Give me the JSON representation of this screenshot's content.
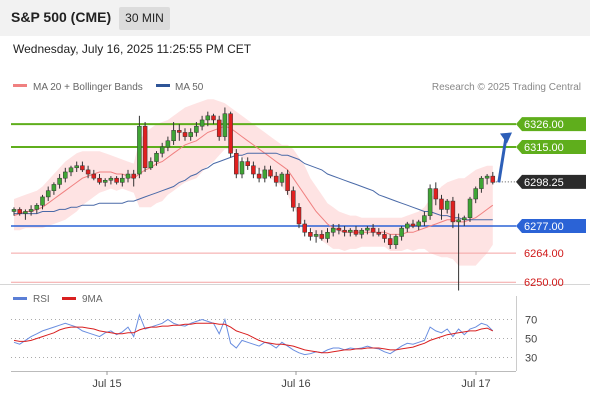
{
  "header": {
    "title": "S&P 500 (CME)",
    "timeframe": "30 MIN"
  },
  "datetime": "Wednesday, July 16, 2025 11:25:55 PM CET",
  "legend": [
    {
      "label": "MA 20 + Bollinger Bands",
      "color": "#f08080"
    },
    {
      "label": "MA 50",
      "color": "#2f5597"
    }
  ],
  "rsi_legend": [
    {
      "label": "RSI",
      "color": "#5b7fd6"
    },
    {
      "label": "9MA",
      "color": "#d92020"
    }
  ],
  "source": "Research © 2025 Trading Central",
  "chart_data": {
    "type": "candlestick",
    "y_range": [
      6240,
      6340
    ],
    "x_labels": [
      "Jul 15",
      "Jul 16",
      "Jul 17"
    ],
    "current_price": 6298.25,
    "current_label": "6298.25",
    "levels": [
      {
        "label": "6326.00",
        "value": 6326,
        "kind": "resistance"
      },
      {
        "label": "6315.00",
        "value": 6315,
        "kind": "resistance"
      },
      {
        "label": "6277.00",
        "value": 6277,
        "kind": "pivot"
      },
      {
        "label": "6264.00",
        "value": 6264,
        "kind": "support"
      },
      {
        "label": "6250.00",
        "value": 6250,
        "kind": "support"
      }
    ],
    "forecast_arrow": {
      "from": 6298,
      "to": 6322
    },
    "candles": [
      [
        6284,
        6286,
        6282,
        6285
      ],
      [
        6285,
        6286,
        6282,
        6283
      ],
      [
        6283,
        6285,
        6280,
        6284
      ],
      [
        6284,
        6287,
        6282,
        6285
      ],
      [
        6285,
        6288,
        6283,
        6287
      ],
      [
        6287,
        6292,
        6285,
        6291
      ],
      [
        6291,
        6296,
        6289,
        6294
      ],
      [
        6294,
        6298,
        6292,
        6297
      ],
      [
        6297,
        6302,
        6295,
        6300
      ],
      [
        6300,
        6305,
        6298,
        6303
      ],
      [
        6303,
        6306,
        6301,
        6305
      ],
      [
        6305,
        6308,
        6303,
        6306
      ],
      [
        6306,
        6308,
        6303,
        6304
      ],
      [
        6304,
        6306,
        6300,
        6302
      ],
      [
        6302,
        6304,
        6299,
        6300
      ],
      [
        6300,
        6302,
        6297,
        6298
      ],
      [
        6298,
        6300,
        6296,
        6299
      ],
      [
        6299,
        6301,
        6297,
        6300
      ],
      [
        6300,
        6301,
        6297,
        6298
      ],
      [
        6298,
        6302,
        6296,
        6300
      ],
      [
        6300,
        6304,
        6298,
        6302
      ],
      [
        6302,
        6304,
        6296,
        6300
      ],
      [
        6302,
        6330,
        6300,
        6325
      ],
      [
        6325,
        6327,
        6303,
        6305
      ],
      [
        6305,
        6310,
        6304,
        6308
      ],
      [
        6308,
        6313,
        6306,
        6312
      ],
      [
        6312,
        6317,
        6310,
        6315
      ],
      [
        6315,
        6320,
        6313,
        6318
      ],
      [
        6318,
        6327,
        6316,
        6323
      ],
      [
        6323,
        6326,
        6318,
        6322
      ],
      [
        6322,
        6324,
        6318,
        6320
      ],
      [
        6320,
        6324,
        6318,
        6322
      ],
      [
        6322,
        6327,
        6320,
        6325
      ],
      [
        6325,
        6330,
        6323,
        6328
      ],
      [
        6328,
        6332,
        6325,
        6330
      ],
      [
        6330,
        6331,
        6326,
        6328
      ],
      [
        6328,
        6330,
        6318,
        6320
      ],
      [
        6320,
        6334,
        6318,
        6331
      ],
      [
        6331,
        6332,
        6310,
        6312
      ],
      [
        6312,
        6314,
        6300,
        6302
      ],
      [
        6302,
        6310,
        6300,
        6308
      ],
      [
        6308,
        6310,
        6304,
        6306
      ],
      [
        6306,
        6308,
        6300,
        6302
      ],
      [
        6302,
        6305,
        6298,
        6300
      ],
      [
        6300,
        6306,
        6298,
        6304
      ],
      [
        6304,
        6306,
        6300,
        6301
      ],
      [
        6301,
        6303,
        6296,
        6298
      ],
      [
        6298,
        6303,
        6296,
        6302
      ],
      [
        6302,
        6304,
        6292,
        6294
      ],
      [
        6294,
        6296,
        6284,
        6286
      ],
      [
        6286,
        6288,
        6276,
        6278
      ],
      [
        6278,
        6280,
        6272,
        6274
      ],
      [
        6274,
        6276,
        6270,
        6272
      ],
      [
        6272,
        6275,
        6269,
        6273
      ],
      [
        6273,
        6275,
        6270,
        6271
      ],
      [
        6271,
        6276,
        6269,
        6274
      ],
      [
        6274,
        6278,
        6272,
        6276
      ],
      [
        6276,
        6278,
        6273,
        6275
      ],
      [
        6275,
        6277,
        6272,
        6274
      ],
      [
        6274,
        6276,
        6272,
        6275
      ],
      [
        6275,
        6277,
        6272,
        6273
      ],
      [
        6273,
        6276,
        6271,
        6275
      ],
      [
        6275,
        6277,
        6273,
        6276
      ],
      [
        6276,
        6278,
        6272,
        6274
      ],
      [
        6274,
        6276,
        6272,
        6273
      ],
      [
        6273,
        6275,
        6269,
        6271
      ],
      [
        6271,
        6273,
        6266,
        6268
      ],
      [
        6268,
        6273,
        6266,
        6272
      ],
      [
        6272,
        6277,
        6270,
        6276
      ],
      [
        6276,
        6279,
        6274,
        6278
      ],
      [
        6278,
        6280,
        6276,
        6277
      ],
      [
        6277,
        6280,
        6275,
        6279
      ],
      [
        6279,
        6284,
        6277,
        6282
      ],
      [
        6282,
        6297,
        6280,
        6295
      ],
      [
        6295,
        6298,
        6287,
        6290
      ],
      [
        6290,
        6292,
        6280,
        6285
      ],
      [
        6285,
        6290,
        6283,
        6289
      ],
      [
        6289,
        6291,
        6276,
        6279
      ],
      [
        6279,
        6283,
        6246,
        6280
      ],
      [
        6280,
        6282,
        6277,
        6281
      ],
      [
        6281,
        6291,
        6279,
        6290
      ],
      [
        6290,
        6296,
        6288,
        6295
      ],
      [
        6295,
        6301,
        6293,
        6300
      ],
      [
        6300,
        6302,
        6297,
        6301
      ],
      [
        6301,
        6303,
        6297,
        6298
      ]
    ],
    "ma20": [
      6282,
      6283,
      6284,
      6284,
      6285,
      6286,
      6288,
      6290,
      6292,
      6294,
      6296,
      6298,
      6300,
      6301,
      6302,
      6303,
      6303,
      6303,
      6302,
      6302,
      6301,
      6300,
      6302,
      6304,
      6305,
      6307,
      6308,
      6310,
      6312,
      6314,
      6316,
      6317,
      6318,
      6320,
      6322,
      6323,
      6324,
      6325,
      6324,
      6322,
      6320,
      6318,
      6316,
      6314,
      6312,
      6310,
      6308,
      6306,
      6304,
      6300,
      6296,
      6292,
      6288,
      6284,
      6281,
      6278,
      6276,
      6275,
      6274,
      6274,
      6274,
      6274,
      6274,
      6274,
      6274,
      6274,
      6273,
      6273,
      6273,
      6274,
      6274,
      6275,
      6276,
      6277,
      6278,
      6279,
      6280,
      6280,
      6279,
      6279,
      6280,
      6281,
      6283,
      6285,
      6287
    ],
    "bb_upper": [
      6290,
      6291,
      6292,
      6293,
      6294,
      6296,
      6299,
      6302,
      6305,
      6308,
      6310,
      6312,
      6313,
      6313,
      6313,
      6313,
      6312,
      6311,
      6310,
      6309,
      6308,
      6307,
      6318,
      6322,
      6324,
      6326,
      6327,
      6328,
      6330,
      6332,
      6334,
      6335,
      6336,
      6337,
      6338,
      6338,
      6337,
      6336,
      6334,
      6332,
      6330,
      6328,
      6326,
      6324,
      6322,
      6320,
      6318,
      6316,
      6316,
      6314,
      6310,
      6306,
      6300,
      6296,
      6292,
      6288,
      6286,
      6284,
      6283,
      6282,
      6282,
      6281,
      6281,
      6281,
      6281,
      6281,
      6281,
      6281,
      6281,
      6282,
      6283,
      6284,
      6286,
      6290,
      6293,
      6296,
      6298,
      6299,
      6300,
      6300,
      6302,
      6304,
      6305,
      6306,
      6306
    ],
    "bb_lower": [
      6275,
      6275,
      6276,
      6276,
      6276,
      6276,
      6277,
      6278,
      6279,
      6280,
      6282,
      6284,
      6287,
      6289,
      6291,
      6293,
      6294,
      6295,
      6294,
      6295,
      6294,
      6293,
      6286,
      6286,
      6286,
      6288,
      6289,
      6292,
      6294,
      6296,
      6298,
      6299,
      6300,
      6303,
      6306,
      6308,
      6311,
      6314,
      6314,
      6312,
      6310,
      6308,
      6306,
      6304,
      6302,
      6300,
      6298,
      6296,
      6292,
      6286,
      6282,
      6278,
      6276,
      6272,
      6270,
      6268,
      6266,
      6266,
      6265,
      6266,
      6266,
      6267,
      6267,
      6267,
      6267,
      6267,
      6265,
      6265,
      6265,
      6266,
      6265,
      6266,
      6266,
      6264,
      6263,
      6262,
      6262,
      6261,
      6258,
      6258,
      6258,
      6258,
      6261,
      6264,
      6268
    ],
    "ma50": [
      6283,
      6283,
      6283,
      6283,
      6283,
      6284,
      6284,
      6284,
      6285,
      6285,
      6286,
      6286,
      6287,
      6287,
      6287,
      6288,
      6288,
      6288,
      6288,
      6288,
      6289,
      6289,
      6290,
      6291,
      6292,
      6293,
      6294,
      6295,
      6296,
      6298,
      6299,
      6301,
      6302,
      6304,
      6305,
      6307,
      6308,
      6309,
      6310,
      6311,
      6311,
      6312,
      6312,
      6312,
      6312,
      6312,
      6312,
      6311,
      6311,
      6310,
      6309,
      6307,
      6306,
      6305,
      6304,
      6302,
      6301,
      6300,
      6299,
      6298,
      6297,
      6296,
      6295,
      6294,
      6292,
      6291,
      6290,
      6289,
      6288,
      6287,
      6286,
      6285,
      6284,
      6284,
      6283,
      6282,
      6282,
      6281,
      6281,
      6280,
      6280,
      6280,
      6280,
      6280,
      6280
    ],
    "rsi": {
      "ticks": [
        70,
        50,
        30
      ],
      "range": [
        20,
        80
      ],
      "rsi": [
        46,
        44,
        48,
        52,
        55,
        58,
        60,
        62,
        64,
        66,
        64,
        62,
        58,
        56,
        54,
        52,
        56,
        58,
        54,
        57,
        62,
        52,
        75,
        60,
        62,
        64,
        66,
        70,
        66,
        64,
        63,
        66,
        68,
        70,
        68,
        66,
        55,
        70,
        45,
        40,
        48,
        46,
        44,
        42,
        46,
        44,
        40,
        46,
        42,
        38,
        35,
        33,
        34,
        36,
        35,
        38,
        40,
        40,
        38,
        40,
        39,
        40,
        42,
        40,
        39,
        36,
        34,
        38,
        42,
        45,
        44,
        46,
        48,
        62,
        58,
        56,
        60,
        52,
        60,
        54,
        60,
        62,
        66,
        64,
        58
      ],
      "ma9": [
        48,
        47,
        47,
        48,
        50,
        52,
        54,
        56,
        59,
        61,
        62,
        62,
        62,
        61,
        60,
        58,
        57,
        56,
        55,
        55,
        56,
        56,
        59,
        61,
        62,
        62,
        63,
        63,
        64,
        64,
        65,
        65,
        66,
        66,
        66,
        66,
        65,
        65,
        62,
        58,
        56,
        54,
        51,
        48,
        46,
        45,
        44,
        44,
        43,
        42,
        40,
        38,
        37,
        36,
        35,
        35,
        36,
        37,
        38,
        38,
        39,
        39,
        40,
        40,
        40,
        39,
        38,
        38,
        39,
        40,
        41,
        43,
        45,
        48,
        50,
        52,
        54,
        55,
        56,
        57,
        58,
        58,
        60,
        61,
        58
      ]
    }
  }
}
